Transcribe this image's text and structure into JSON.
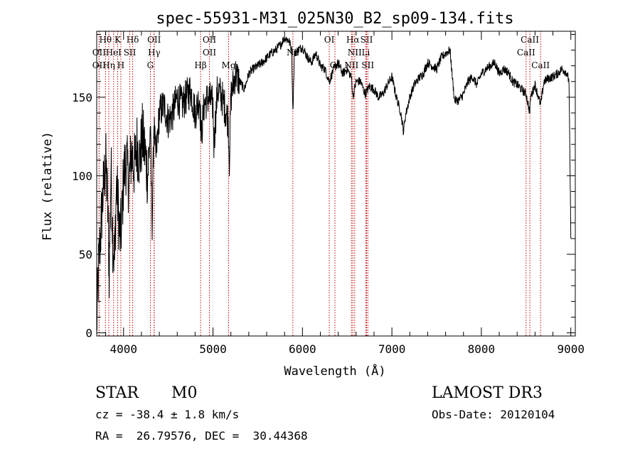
{
  "chart_data": {
    "type": "line",
    "title": "spec-55931-M31_025N30_B2_sp09-134.fits",
    "xlabel": "Wavelength (Å)",
    "ylabel": "Flux (relative)",
    "xlim": [
      3700,
      9050
    ],
    "ylim": [
      -2,
      192
    ],
    "x_ticks": [
      4000,
      5000,
      6000,
      7000,
      8000,
      9000
    ],
    "y_ticks": [
      0,
      50,
      100,
      150
    ],
    "grid": false,
    "series": [
      {
        "color": "#000000",
        "x": [
          3700,
          3720,
          3740,
          3760,
          3780,
          3800,
          3820,
          3840,
          3860,
          3880,
          3900,
          3920,
          3940,
          3960,
          3980,
          4000,
          4030,
          4060,
          4090,
          4120,
          4150,
          4180,
          4210,
          4240,
          4270,
          4300,
          4320,
          4340,
          4360,
          4400,
          4450,
          4500,
          4550,
          4600,
          4650,
          4700,
          4750,
          4800,
          4850,
          4870,
          4900,
          4950,
          5000,
          5010,
          5050,
          5100,
          5150,
          5170,
          5183,
          5200,
          5250,
          5300,
          5350,
          5400,
          5450,
          5500,
          5550,
          5600,
          5650,
          5700,
          5750,
          5800,
          5850,
          5880,
          5893,
          5910,
          5950,
          6000,
          6050,
          6100,
          6150,
          6200,
          6250,
          6300,
          6350,
          6400,
          6450,
          6500,
          6550,
          6563,
          6600,
          6650,
          6700,
          6750,
          6800,
          6850,
          6900,
          6950,
          7000,
          7050,
          7100,
          7130,
          7150,
          7200,
          7250,
          7300,
          7350,
          7400,
          7450,
          7500,
          7550,
          7600,
          7650,
          7680,
          7700,
          7750,
          7800,
          7850,
          7900,
          7950,
          8000,
          8050,
          8100,
          8150,
          8200,
          8250,
          8300,
          8350,
          8400,
          8450,
          8500,
          8542,
          8550,
          8600,
          8662,
          8700,
          8750,
          8800,
          8850,
          8900,
          8950,
          8980,
          9000
        ],
        "values": [
          5,
          40,
          60,
          80,
          95,
          110,
          85,
          40,
          105,
          60,
          45,
          95,
          80,
          60,
          70,
          100,
          110,
          95,
          115,
          105,
          120,
          110,
          125,
          115,
          100,
          130,
          70,
          135,
          110,
          140,
          145,
          135,
          140,
          150,
          145,
          150,
          155,
          140,
          150,
          125,
          145,
          150,
          145,
          120,
          155,
          150,
          140,
          135,
          110,
          150,
          165,
          160,
          155,
          165,
          168,
          170,
          172,
          175,
          178,
          180,
          183,
          188,
          186,
          180,
          140,
          178,
          180,
          182,
          176,
          172,
          178,
          170,
          168,
          160,
          168,
          172,
          165,
          168,
          162,
          150,
          160,
          160,
          152,
          157,
          155,
          150,
          152,
          158,
          163,
          150,
          140,
          128,
          138,
          150,
          158,
          162,
          165,
          172,
          170,
          168,
          175,
          178,
          180,
          160,
          148,
          148,
          152,
          160,
          163,
          158,
          165,
          168,
          170,
          172,
          165,
          168,
          166,
          160,
          158,
          155,
          152,
          140,
          150,
          158,
          145,
          160,
          162,
          163,
          165,
          168,
          166,
          160,
          60
        ]
      }
    ],
    "lines": [
      {
        "label": "Hθ",
        "x": 3798,
        "row": 0
      },
      {
        "label": "K",
        "x": 3934,
        "row": 0
      },
      {
        "label": "Hδ",
        "x": 4102,
        "row": 0
      },
      {
        "label": "OII",
        "x": 4342,
        "row": 0
      },
      {
        "label": "OII",
        "x": 4960,
        "row": 0
      },
      {
        "label": "OI",
        "x": 6300,
        "row": 0
      },
      {
        "label": "Hα",
        "x": 6563,
        "row": 0
      },
      {
        "label": "SII",
        "x": 6717,
        "row": 0
      },
      {
        "label": "CaII",
        "x": 8542,
        "row": 0
      },
      {
        "label": "OII",
        "x": 3727,
        "row": 1
      },
      {
        "label": "HeI",
        "x": 3889,
        "row": 1
      },
      {
        "label": "SII",
        "x": 4070,
        "row": 1
      },
      {
        "label": "Hγ",
        "x": 4342,
        "row": 1
      },
      {
        "label": "OII",
        "x": 4960,
        "row": 1
      },
      {
        "label": "Na",
        "x": 5893,
        "row": 1
      },
      {
        "label": "NII",
        "x": 6584,
        "row": 1
      },
      {
        "label": "Li",
        "x": 6708,
        "row": 1
      },
      {
        "label": "CaII",
        "x": 8500,
        "row": 1
      },
      {
        "label": "OII",
        "x": 3727,
        "row": 2
      },
      {
        "label": "Hη",
        "x": 3835,
        "row": 2
      },
      {
        "label": "H",
        "x": 3970,
        "row": 2
      },
      {
        "label": "G",
        "x": 4300,
        "row": 2
      },
      {
        "label": "Hβ",
        "x": 4861,
        "row": 2
      },
      {
        "label": "Mg",
        "x": 5175,
        "row": 2
      },
      {
        "label": "OI",
        "x": 6363,
        "row": 2
      },
      {
        "label": "NII",
        "x": 6548,
        "row": 2
      },
      {
        "label": "SII",
        "x": 6731,
        "row": 2
      },
      {
        "label": "CaII",
        "x": 8662,
        "row": 2
      }
    ]
  },
  "info": {
    "class": "STAR",
    "subclass": "M0",
    "survey": "LAMOST DR3",
    "cz": "cz = -38.4 ± 1.8 km/s",
    "obs_date": "Obs-Date: 20120104",
    "coords": "RA =  26.79576, DEC =  30.44368"
  }
}
